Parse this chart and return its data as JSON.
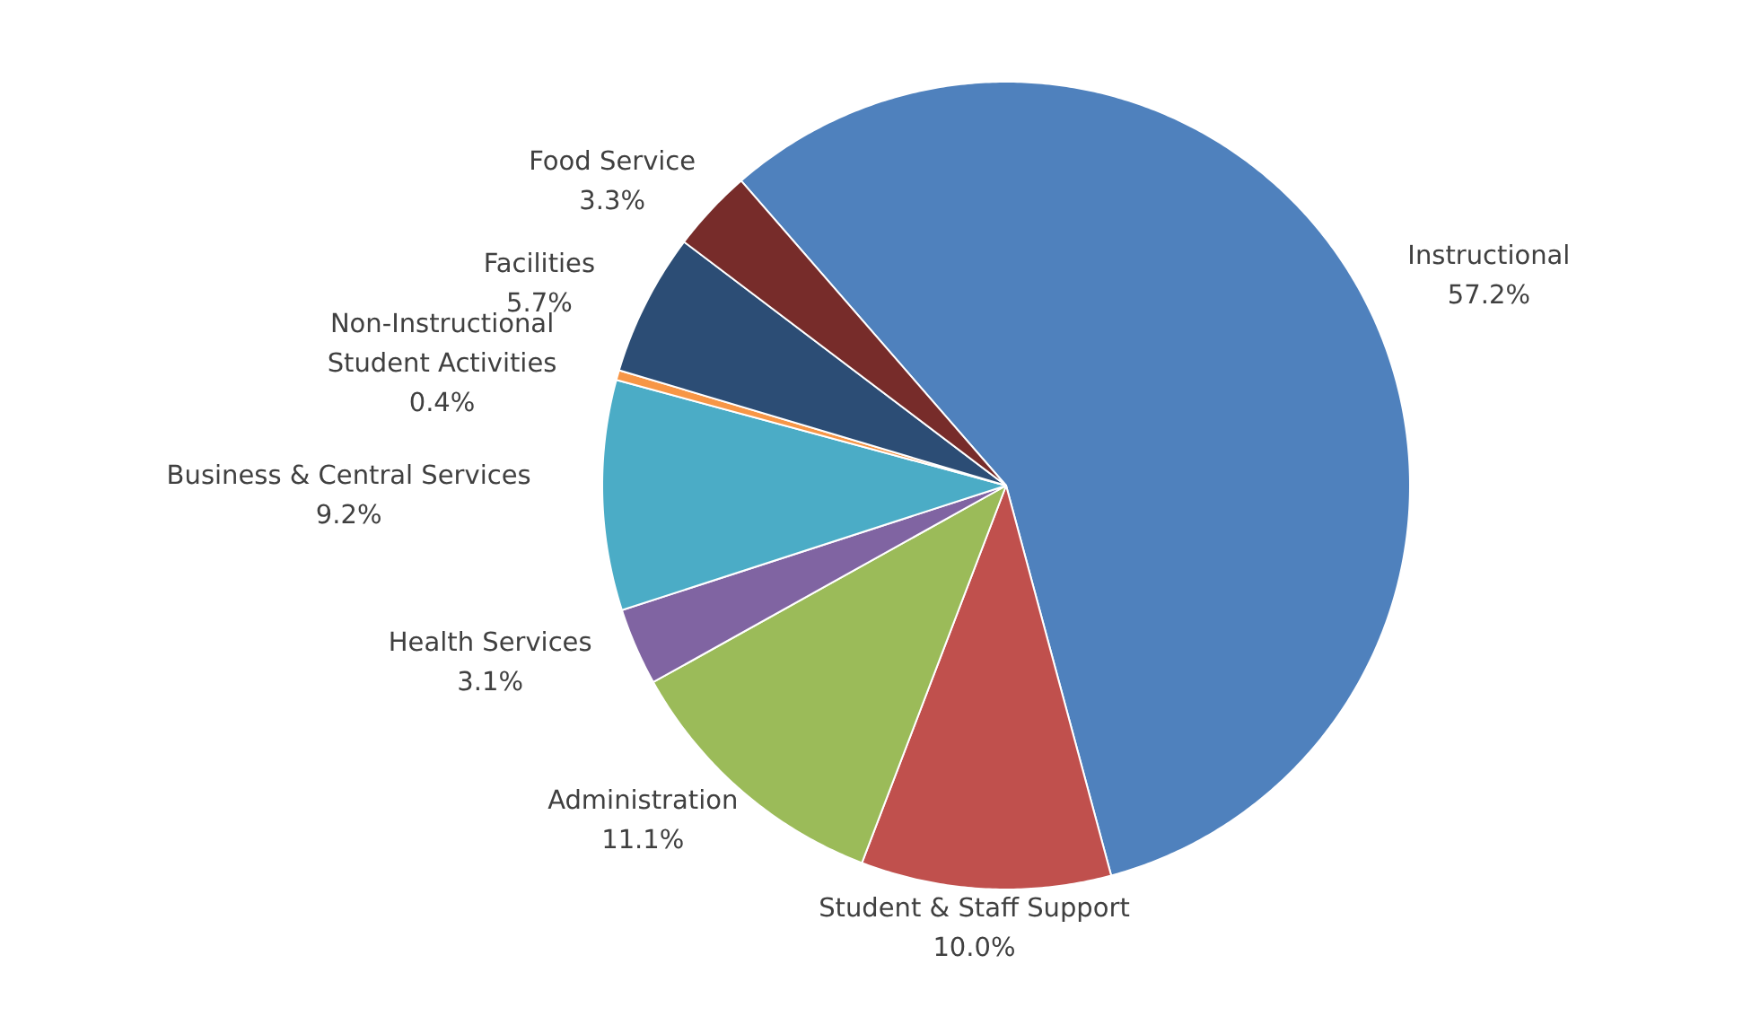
{
  "chart_data": {
    "type": "pie",
    "categories": [
      "Instructional",
      "Student & Staff Support",
      "Administration",
      "Health Services",
      "Business & Central Services",
      "Non-Instructional Student Activities",
      "Facilities",
      "Food Service"
    ],
    "values": [
      57.2,
      10.0,
      11.1,
      3.1,
      9.2,
      0.4,
      5.7,
      3.3
    ],
    "colors": [
      "#4f81bd",
      "#c0504d",
      "#9bbb59",
      "#8064a2",
      "#4bacc6",
      "#f79646",
      "#2c4d75",
      "#772c2a"
    ],
    "value_labels": [
      "57.2%",
      "10.0%",
      "11.1%",
      "3.1%",
      "9.2%",
      "0.4%",
      "5.7%",
      "3.3%"
    ]
  }
}
